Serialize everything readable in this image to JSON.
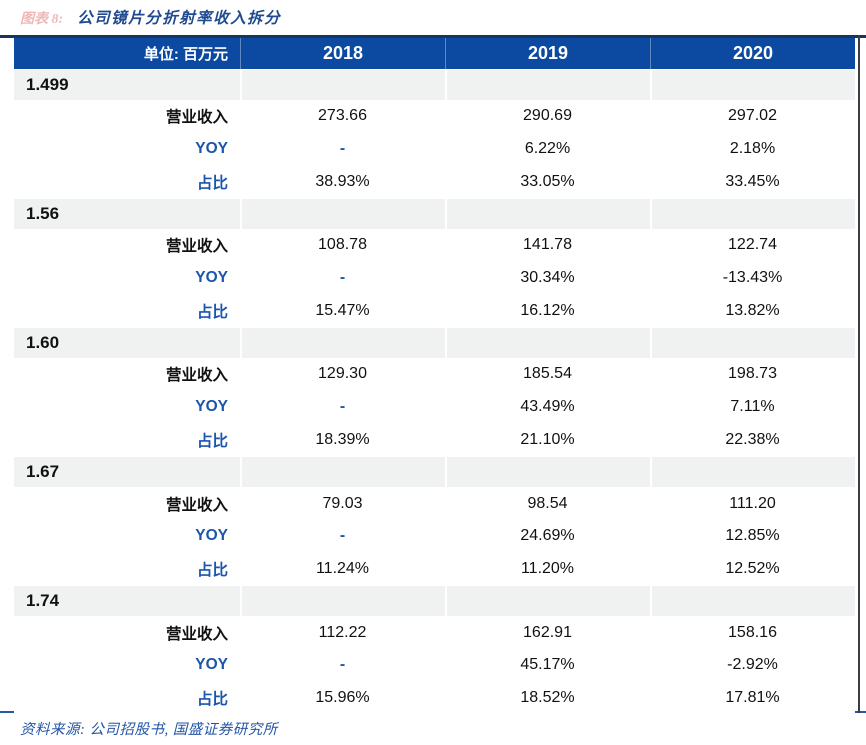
{
  "figure": {
    "label": "图表 8:",
    "title": "公司镜片分折射率收入拆分"
  },
  "table": {
    "unit_header": "单位: 百万元",
    "year_headers": [
      "2018",
      "2019",
      "2020"
    ],
    "row_labels": {
      "revenue": "营业收入",
      "yoy": "YOY",
      "share": "占比"
    },
    "sections": [
      {
        "category": "1.499",
        "revenue": [
          "273.66",
          "290.69",
          "297.02"
        ],
        "yoy": [
          "-",
          "6.22%",
          "2.18%"
        ],
        "share": [
          "38.93%",
          "33.05%",
          "33.45%"
        ]
      },
      {
        "category": "1.56",
        "revenue": [
          "108.78",
          "141.78",
          "122.74"
        ],
        "yoy": [
          "-",
          "30.34%",
          "-13.43%"
        ],
        "share": [
          "15.47%",
          "16.12%",
          "13.82%"
        ]
      },
      {
        "category": "1.60",
        "revenue": [
          "129.30",
          "185.54",
          "198.73"
        ],
        "yoy": [
          "-",
          "43.49%",
          "7.11%"
        ],
        "share": [
          "18.39%",
          "21.10%",
          "22.38%"
        ]
      },
      {
        "category": "1.67",
        "revenue": [
          "79.03",
          "98.54",
          "111.20"
        ],
        "yoy": [
          "-",
          "24.69%",
          "12.85%"
        ],
        "share": [
          "11.24%",
          "11.20%",
          "12.52%"
        ]
      },
      {
        "category": "1.74",
        "revenue": [
          "112.22",
          "162.91",
          "158.16"
        ],
        "yoy": [
          "-",
          "45.17%",
          "-2.92%"
        ],
        "share": [
          "15.96%",
          "18.52%",
          "17.81%"
        ]
      }
    ]
  },
  "footer": {
    "source": "资料来源: 公司招股书, 国盛证券研究所"
  },
  "colors": {
    "header_bg": "#0b4aa0",
    "label_blue": "#1b55ac",
    "top_rule": "#17365d",
    "bottom_rule": "#2459a8",
    "category_bg": "#f0f1f1",
    "figure_label_red": "#f0b9b9",
    "figure_title_blue": "#1f4a8f"
  }
}
